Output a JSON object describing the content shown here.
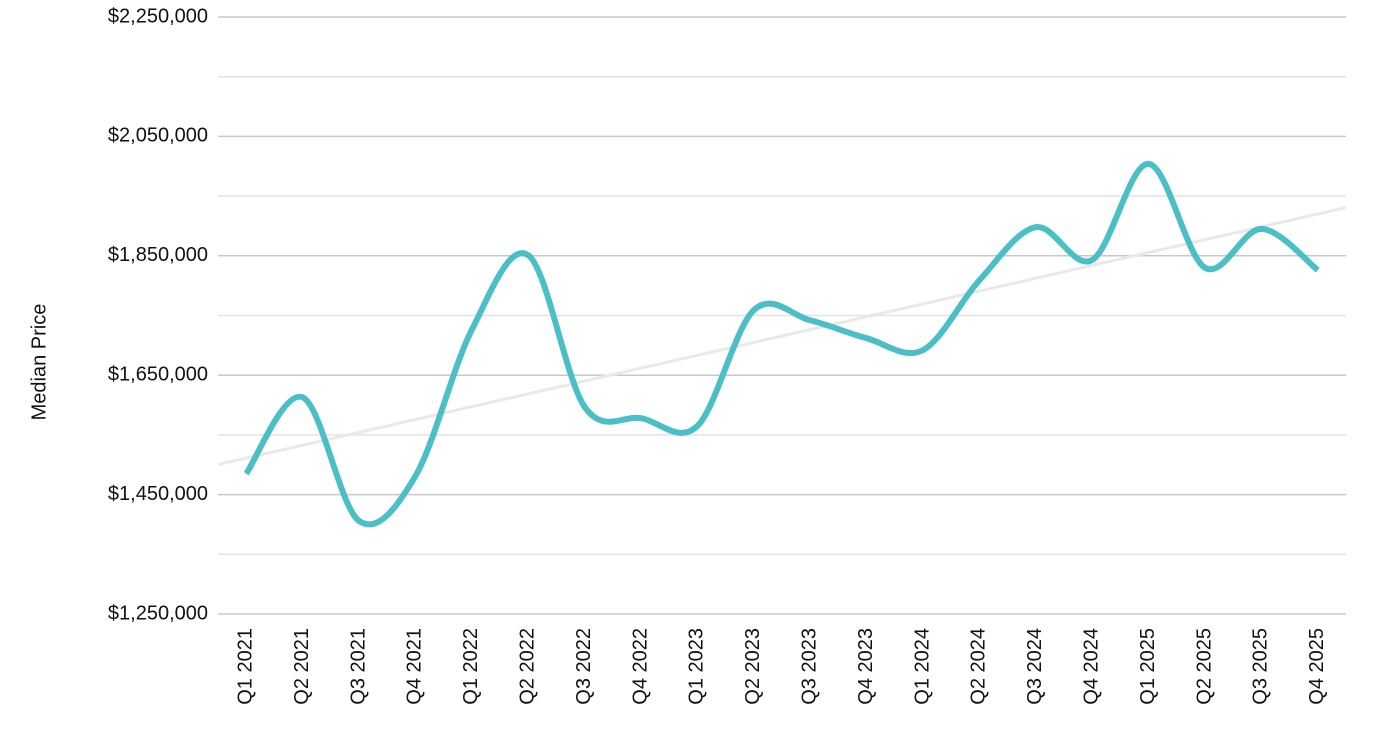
{
  "chart_data": {
    "type": "line",
    "y_axis_label": "Median Price",
    "categories": [
      "Q1 2021",
      "Q2 2021",
      "Q3 2021",
      "Q4 2021",
      "Q1 2022",
      "Q2 2022",
      "Q3 2022",
      "Q4 2022",
      "Q1 2023",
      "Q2 2023",
      "Q3 2023",
      "Q4 2023",
      "Q1 2024",
      "Q2 2024",
      "Q3 2024",
      "Q4 2024",
      "Q1 2025",
      "Q2 2025",
      "Q3 2025",
      "Q4 2025"
    ],
    "values": [
      1485000,
      1613000,
      1406000,
      1481000,
      1726000,
      1851000,
      1597000,
      1578000,
      1565000,
      1759000,
      1742000,
      1712000,
      1692000,
      1809000,
      1898000,
      1843000,
      2004000,
      1830000,
      1895000,
      1826000
    ],
    "color": "#4bbfc7",
    "trendline": true,
    "trendline_color": "#e9e9e9",
    "ylim": [
      1250000,
      2250000
    ],
    "yticks": [
      {
        "value": 1250000,
        "label": "$1,250,000"
      },
      {
        "value": 1450000,
        "label": "$1,450,000"
      },
      {
        "value": 1650000,
        "label": "$1,650,000"
      },
      {
        "value": 1850000,
        "label": "$1,850,000"
      },
      {
        "value": 2050000,
        "label": "$2,050,000"
      },
      {
        "value": 2250000,
        "label": "$2,250,000"
      }
    ],
    "grid": true
  }
}
